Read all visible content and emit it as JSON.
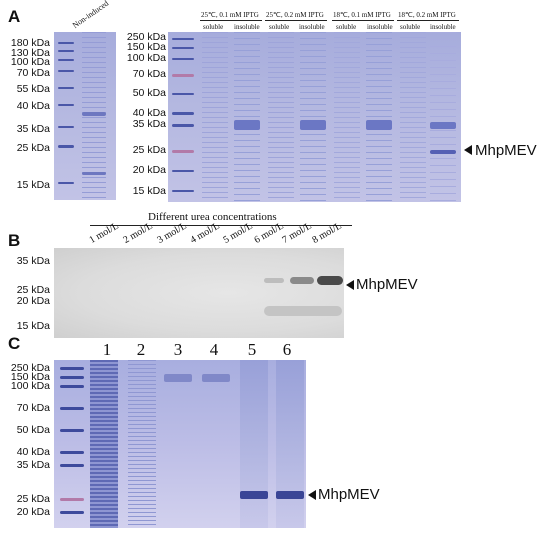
{
  "panels": {
    "a": {
      "letter": "A",
      "non_induced": "Non-induced",
      "ladder_left": [
        "180 kDa",
        "130 kDa",
        "100 kDa",
        "70 kDa",
        "55 kDa",
        "40 kDa",
        "35 kDa",
        "25 kDa",
        "15 kDa"
      ],
      "ladder_right": [
        "250 kDa",
        "150 kDa",
        "100 kDa",
        "70 kDa",
        "50 kDa",
        "40 kDa",
        "35 kDa",
        "25 kDa",
        "20 kDa",
        "15 kDa"
      ],
      "conditions": [
        "25℃, 0.1 mM IPTG",
        "25℃, 0.2 mM IPTG",
        "18℃, 0.1 mM IPTG",
        "18℃, 0.2 mM IPTG"
      ],
      "soluble": "soluble",
      "insoluble": "insoluble",
      "arrow_label": "MhpMEV"
    },
    "b": {
      "letter": "B",
      "title": "Different urea concentrations",
      "concentrations": [
        "1 mol/L",
        "2 mol/L",
        "3 mol/L",
        "4 mol/L",
        "5 mol/L",
        "6 mol/L",
        "7 mol/L",
        "8 mol/L"
      ],
      "ladder": [
        "35 kDa",
        "25 kDa",
        "20 kDa",
        "15 kDa"
      ],
      "arrow_label": "MhpMEV"
    },
    "c": {
      "letter": "C",
      "lanes": [
        "1",
        "2",
        "3",
        "4",
        "5",
        "6"
      ],
      "ladder": [
        "250 kDa",
        "150 kDa",
        "100 kDa",
        "70 kDa",
        "50 kDa",
        "40 kDa",
        "35 kDa",
        "25 kDa",
        "20 kDa"
      ],
      "arrow_label": "MhpMEV"
    }
  }
}
